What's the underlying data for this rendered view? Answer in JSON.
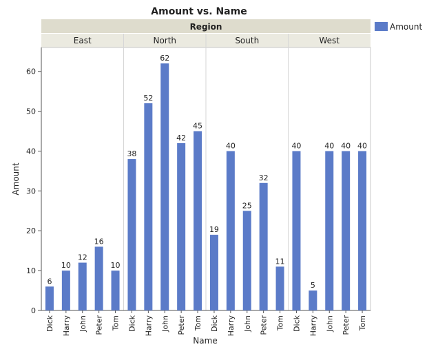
{
  "chart_data": {
    "type": "bar",
    "title": "Amount vs. Name",
    "group_header": "Region",
    "xlabel": "Name",
    "ylabel": "Amount",
    "ylim": [
      0,
      66
    ],
    "yticks": [
      0,
      10,
      20,
      30,
      40,
      50,
      60
    ],
    "grid": false,
    "legend": {
      "position": "top-right",
      "entries": [
        "Amount"
      ]
    },
    "color": "#5b7bc8",
    "groups": [
      {
        "name": "East",
        "categories": [
          "Dick",
          "Harry",
          "John",
          "Peter",
          "Tom"
        ],
        "values": [
          6,
          10,
          12,
          16,
          10
        ]
      },
      {
        "name": "North",
        "categories": [
          "Dick",
          "Harry",
          "John",
          "Peter",
          "Tom"
        ],
        "values": [
          38,
          52,
          62,
          42,
          45
        ]
      },
      {
        "name": "South",
        "categories": [
          "Dick",
          "Harry",
          "John",
          "Peter",
          "Tom"
        ],
        "values": [
          19,
          40,
          25,
          32,
          11
        ]
      },
      {
        "name": "West",
        "categories": [
          "Dick",
          "Harry",
          "John",
          "Peter",
          "Tom"
        ],
        "values": [
          40,
          5,
          40,
          40,
          40
        ]
      }
    ]
  }
}
